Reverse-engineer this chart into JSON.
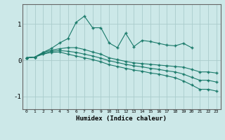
{
  "x": [
    0,
    1,
    2,
    3,
    4,
    5,
    6,
    7,
    8,
    9,
    10,
    11,
    12,
    13,
    14,
    15,
    16,
    17,
    18,
    19,
    20,
    21,
    22,
    23
  ],
  "line1": [
    0.07,
    0.09,
    0.22,
    0.33,
    0.48,
    0.6,
    1.05,
    1.22,
    0.9,
    0.9,
    0.48,
    0.35,
    0.75,
    0.38,
    0.55,
    0.52,
    0.47,
    0.42,
    0.4,
    0.47,
    0.35,
    null,
    null,
    null
  ],
  "line2": [
    0.07,
    0.09,
    0.22,
    0.28,
    0.32,
    0.35,
    0.35,
    0.3,
    0.23,
    0.17,
    0.07,
    0.02,
    -0.03,
    -0.07,
    -0.09,
    -0.11,
    -0.13,
    -0.15,
    -0.17,
    -0.19,
    -0.25,
    -0.32,
    -0.32,
    -0.35
  ],
  "line3": [
    0.07,
    0.09,
    0.19,
    0.25,
    0.27,
    0.25,
    0.22,
    0.17,
    0.12,
    0.06,
    -0.01,
    -0.06,
    -0.11,
    -0.15,
    -0.18,
    -0.22,
    -0.25,
    -0.29,
    -0.32,
    -0.38,
    -0.47,
    -0.55,
    -0.55,
    -0.6
  ],
  "line4": [
    0.07,
    0.09,
    0.17,
    0.22,
    0.23,
    0.17,
    0.12,
    0.07,
    0.02,
    -0.04,
    -0.12,
    -0.17,
    -0.22,
    -0.27,
    -0.3,
    -0.35,
    -0.38,
    -0.43,
    -0.48,
    -0.57,
    -0.68,
    -0.8,
    -0.8,
    -0.85
  ],
  "bg_color": "#cce8e8",
  "grid_color": "#aacccc",
  "line_color": "#1a7a6a",
  "xlabel": "Humidex (Indice chaleur)",
  "yticks": [
    -1,
    0,
    1
  ],
  "xlim": [
    -0.5,
    23.5
  ],
  "ylim": [
    -1.35,
    1.55
  ]
}
